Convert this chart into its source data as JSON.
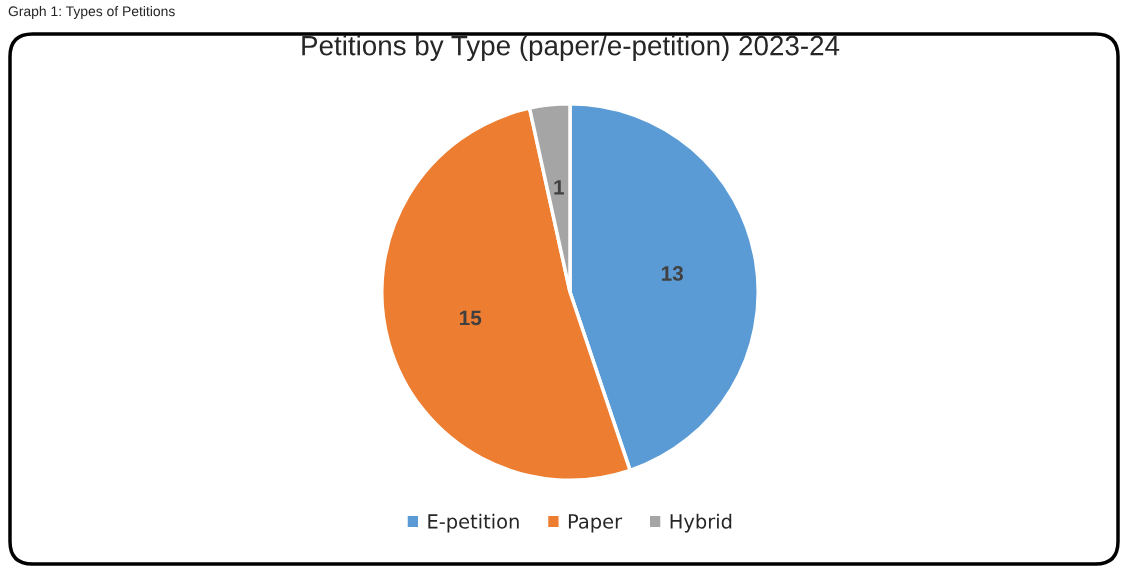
{
  "chart_data": {
    "type": "pie",
    "title": "Petitions by Type (paper/e-petition) 2023-24",
    "annotations": [
      "Graph 1: Types of Petitions"
    ],
    "categories": [
      "E-petition",
      "Paper",
      "Hybrid"
    ],
    "values": [
      13,
      15,
      1
    ],
    "colors": [
      "#5b9bd5",
      "#ed7d31",
      "#a5a5a5"
    ],
    "data_labels": true,
    "legend": "bottom"
  }
}
